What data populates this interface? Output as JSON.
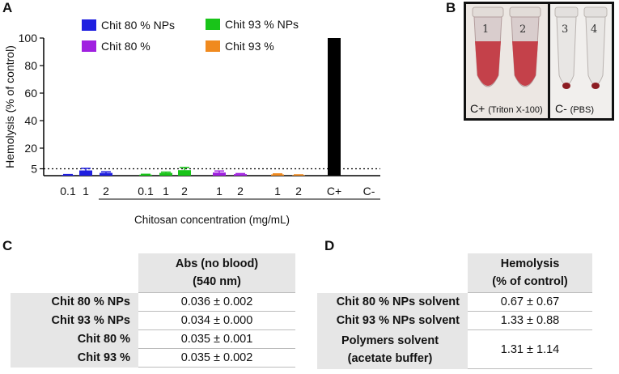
{
  "panels": {
    "a": "A",
    "b": "B",
    "c": "C",
    "d": "D"
  },
  "chart_data": {
    "type": "bar",
    "ylabel": "Hemolysis (% of control)",
    "xlabel": "Chitosan concentration (mg/mL)",
    "ylim": [
      0,
      100
    ],
    "yticks": [
      5,
      20,
      40,
      60,
      80,
      100
    ],
    "reference_line": 5,
    "legend": [
      {
        "name": "Chit 80 % NPs",
        "color": "#1f1fe0"
      },
      {
        "name": "Chit 93 % NPs",
        "color": "#19c419"
      },
      {
        "name": "Chit 80 %",
        "color": "#a020e0"
      },
      {
        "name": "Chit 93 %",
        "color": "#f08a1f"
      }
    ],
    "groups": [
      {
        "series": "Chit 80 % NPs",
        "color": "#1f1fe0",
        "labels": [
          "0.1",
          "1",
          "2"
        ],
        "values": [
          0.5,
          3.8,
          2.0
        ],
        "errors": [
          0.3,
          1.5,
          0.8
        ]
      },
      {
        "series": "Chit 93 % NPs",
        "color": "#19c419",
        "labels": [
          "0.1",
          "1",
          "2"
        ],
        "values": [
          0.7,
          2.0,
          4.0
        ],
        "errors": [
          0.3,
          0.6,
          2.0
        ]
      },
      {
        "series": "Chit 80 %",
        "color": "#a020e0",
        "labels": [
          "1",
          "2"
        ],
        "values": [
          2.3,
          1.1
        ],
        "errors": [
          1.1,
          0.4
        ]
      },
      {
        "series": "Chit 93 %",
        "color": "#f08a1f",
        "labels": [
          "1",
          "2"
        ],
        "values": [
          0.9,
          0.3
        ],
        "errors": [
          0.4,
          0.3
        ]
      },
      {
        "series": "controls",
        "color": "#000000",
        "labels": [
          "C+",
          "C-"
        ],
        "values": [
          100,
          0
        ],
        "errors": [
          0,
          0
        ]
      }
    ]
  },
  "photo": {
    "left_caption": "C+",
    "left_caption_small": "(Triton X-100)",
    "right_caption": "C-",
    "right_caption_small": "(PBS)",
    "tube_labels": [
      "1",
      "2",
      "3",
      "4"
    ]
  },
  "table_c": {
    "header_line1": "Abs (no blood)",
    "header_line2": "(540 nm)",
    "rows": [
      {
        "label": "Chit 80 % NPs",
        "value": "0.036 ± 0.002"
      },
      {
        "label": "Chit 93 % NPs",
        "value": "0.034 ± 0.000"
      },
      {
        "label": "Chit 80 %",
        "value": "0.035 ± 0.001"
      },
      {
        "label": "Chit 93 %",
        "value": "0.035 ± 0.002"
      }
    ]
  },
  "table_d": {
    "header_line1": "Hemolysis",
    "header_line2": "(% of control)",
    "rows": [
      {
        "label": "Chit 80 % NPs solvent",
        "value": "0.67 ± 0.67"
      },
      {
        "label": "Chit 93 % NPs solvent",
        "value": "1.33 ± 0.88"
      },
      {
        "label_line1": "Polymers solvent",
        "label_line2": "(acetate buffer)",
        "value": "1.31 ± 1.14"
      }
    ]
  }
}
